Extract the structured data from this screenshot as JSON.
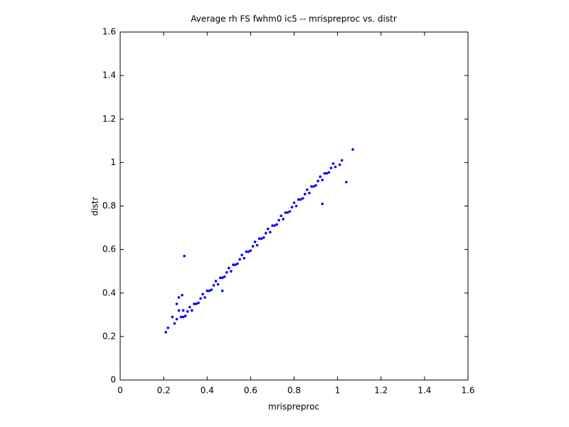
{
  "chart_data": {
    "type": "scatter",
    "title": "Average rh FS fwhm0 ic5 -- mrispreproc vs. distr",
    "x_label": "mrispreproc",
    "y_label": "distr",
    "color": "#0000ff",
    "xlim": [
      0,
      1.6
    ],
    "ylim": [
      0,
      1.6
    ],
    "xticks": [
      0,
      0.2,
      0.4,
      0.6,
      0.8,
      1,
      1.2,
      1.4,
      1.6
    ],
    "yticks": [
      0,
      0.2,
      0.4,
      0.6,
      0.8,
      1,
      1.2,
      1.4,
      1.6
    ],
    "x": [
      0.28,
      0.29,
      0.3,
      0.31,
      0.32,
      0.33,
      0.34,
      0.35,
      0.36,
      0.37,
      0.38,
      0.39,
      0.4,
      0.41,
      0.42,
      0.43,
      0.44,
      0.45,
      0.46,
      0.47,
      0.48,
      0.49,
      0.5,
      0.51,
      0.52,
      0.53,
      0.54,
      0.55,
      0.56,
      0.57,
      0.58,
      0.59,
      0.6,
      0.61,
      0.62,
      0.63,
      0.64,
      0.65,
      0.66,
      0.67,
      0.68,
      0.69,
      0.7,
      0.71,
      0.72,
      0.73,
      0.74,
      0.75,
      0.76,
      0.77,
      0.78,
      0.79,
      0.8,
      0.81,
      0.82,
      0.83,
      0.84,
      0.85,
      0.86,
      0.87,
      0.88,
      0.89,
      0.9,
      0.91,
      0.92,
      0.93,
      0.94,
      0.95,
      0.96,
      0.97,
      0.98,
      0.99,
      0.295,
      0.27,
      0.285,
      0.27,
      0.29,
      0.21,
      0.22,
      0.24,
      0.25,
      0.26,
      0.47,
      0.93,
      1.04,
      1.01,
      1.02,
      1.07,
      0.26
    ],
    "values": [
      0.29,
      0.29,
      0.295,
      0.315,
      0.335,
      0.32,
      0.35,
      0.35,
      0.355,
      0.375,
      0.395,
      0.38,
      0.41,
      0.41,
      0.415,
      0.435,
      0.455,
      0.44,
      0.47,
      0.47,
      0.475,
      0.495,
      0.515,
      0.5,
      0.53,
      0.53,
      0.535,
      0.555,
      0.575,
      0.56,
      0.59,
      0.59,
      0.595,
      0.615,
      0.635,
      0.62,
      0.65,
      0.65,
      0.655,
      0.675,
      0.695,
      0.68,
      0.71,
      0.71,
      0.715,
      0.735,
      0.755,
      0.74,
      0.77,
      0.77,
      0.775,
      0.795,
      0.815,
      0.8,
      0.83,
      0.83,
      0.835,
      0.855,
      0.875,
      0.86,
      0.89,
      0.89,
      0.895,
      0.915,
      0.935,
      0.92,
      0.95,
      0.95,
      0.955,
      0.975,
      0.995,
      0.98,
      0.57,
      0.38,
      0.39,
      0.32,
      0.32,
      0.22,
      0.24,
      0.29,
      0.26,
      0.28,
      0.41,
      0.81,
      0.91,
      0.99,
      1.01,
      1.06,
      0.35
    ]
  }
}
